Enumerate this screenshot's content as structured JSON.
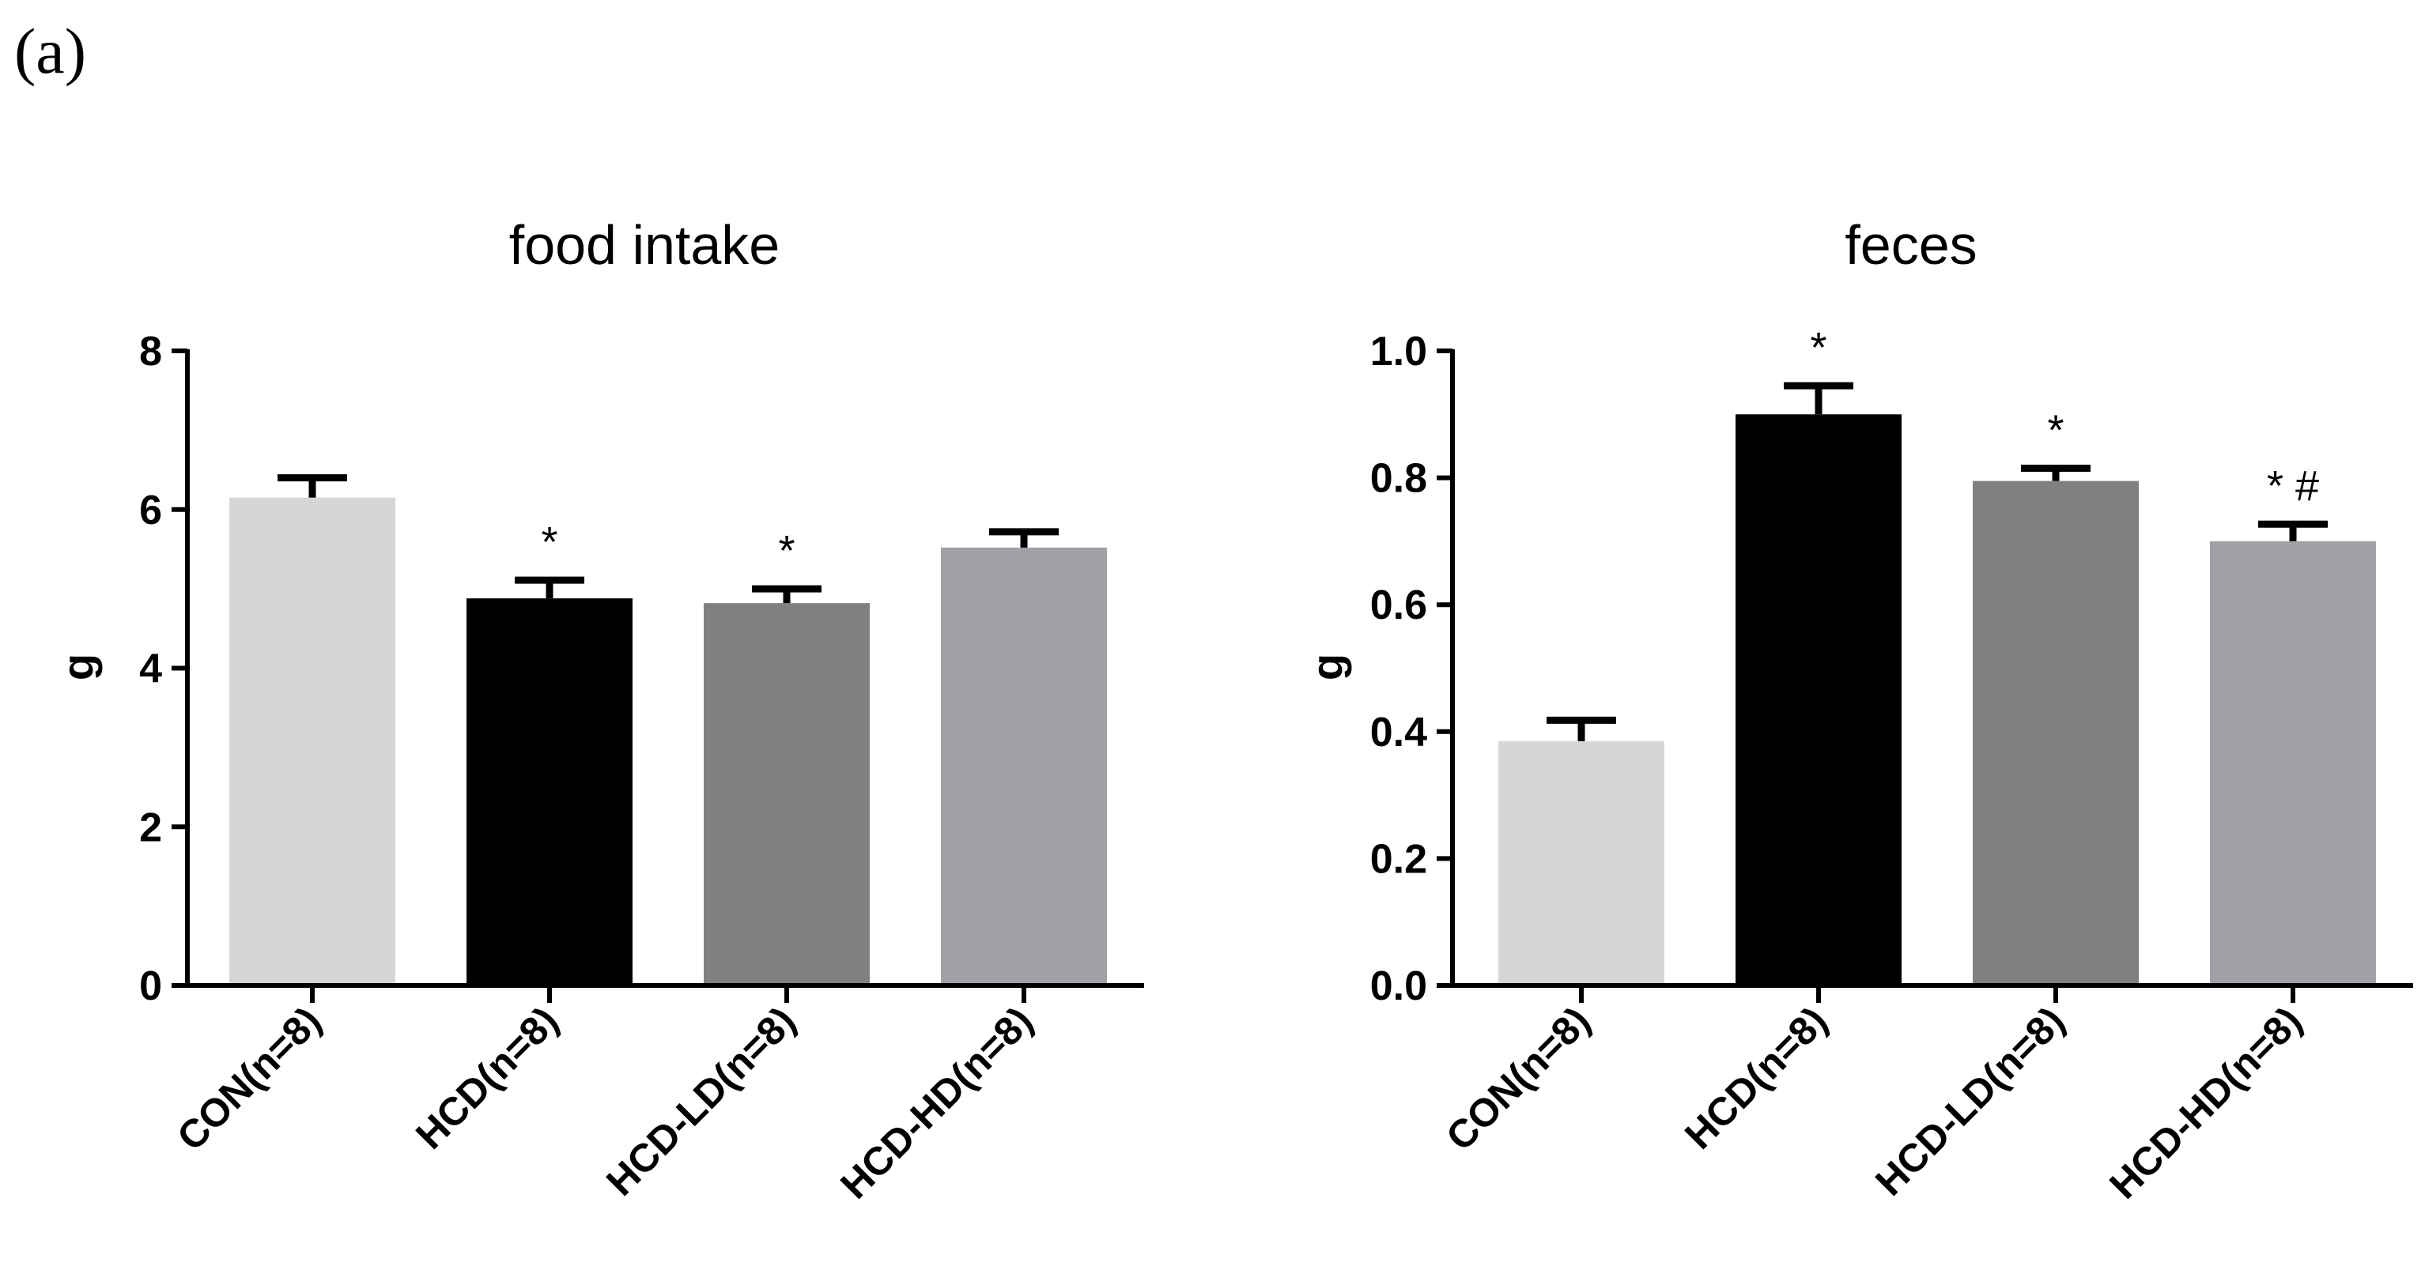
{
  "panel_label": "(a)",
  "chart_data": [
    {
      "type": "bar",
      "title": "food intake",
      "xlabel": "",
      "ylabel": "g",
      "ylim": [
        0,
        8
      ],
      "yticks": [
        "0",
        "2",
        "4",
        "6",
        "8"
      ],
      "categories": [
        "CON(n=8)",
        "HCD(n=8)",
        "HCD-LD(n=8)",
        "HCD-HD(n=8)"
      ],
      "values": [
        6.15,
        4.88,
        4.82,
        5.52
      ],
      "errors": [
        0.25,
        0.23,
        0.18,
        0.2
      ],
      "colors": [
        "#d6d6d6",
        "#000000",
        "#808080",
        "#a0a0a6"
      ],
      "annotations": [
        "",
        "*",
        "*",
        ""
      ]
    },
    {
      "type": "bar",
      "title": "feces",
      "xlabel": "",
      "ylabel": "g",
      "ylim": [
        0,
        1.0
      ],
      "yticks": [
        "0.0",
        "0.2",
        "0.4",
        "0.6",
        "0.8",
        "1.0"
      ],
      "categories": [
        "CON(n=8)",
        "HCD(n=8)",
        "HCD-LD(n=8)",
        "HCD-HD(n=8)"
      ],
      "values": [
        0.385,
        0.9,
        0.795,
        0.7
      ],
      "errors": [
        0.033,
        0.045,
        0.02,
        0.027
      ],
      "colors": [
        "#d6d6d6",
        "#000000",
        "#808080",
        "#a0a0a6"
      ],
      "annotations": [
        "",
        "*",
        "*",
        "* #"
      ]
    }
  ]
}
